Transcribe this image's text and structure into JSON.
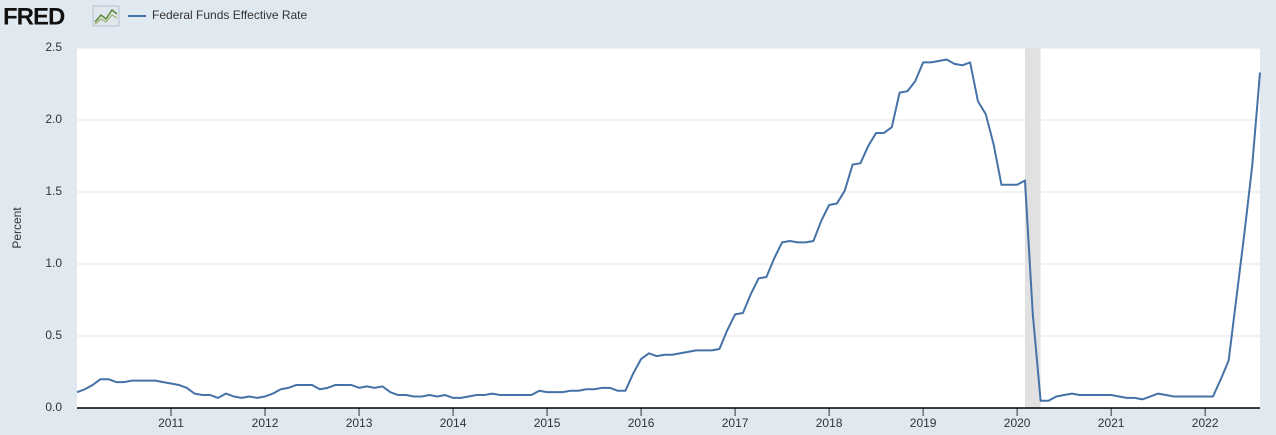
{
  "logo": "FRED",
  "chart_data": {
    "type": "line",
    "y_label": "Percent",
    "series": [
      {
        "name": "Federal Funds Effective Rate",
        "color": "#4572a7",
        "values": [
          0.11,
          0.13,
          0.16,
          0.2,
          0.2,
          0.18,
          0.18,
          0.19,
          0.19,
          0.19,
          0.19,
          0.18,
          0.17,
          0.16,
          0.14,
          0.1,
          0.09,
          0.09,
          0.07,
          0.1,
          0.08,
          0.07,
          0.08,
          0.07,
          0.08,
          0.1,
          0.13,
          0.14,
          0.16,
          0.16,
          0.16,
          0.13,
          0.14,
          0.16,
          0.16,
          0.16,
          0.14,
          0.15,
          0.14,
          0.15,
          0.11,
          0.09,
          0.09,
          0.08,
          0.08,
          0.09,
          0.08,
          0.09,
          0.07,
          0.07,
          0.08,
          0.09,
          0.09,
          0.1,
          0.09,
          0.09,
          0.09,
          0.09,
          0.09,
          0.12,
          0.11,
          0.11,
          0.11,
          0.12,
          0.12,
          0.13,
          0.13,
          0.14,
          0.14,
          0.12,
          0.12,
          0.24,
          0.34,
          0.38,
          0.36,
          0.37,
          0.37,
          0.38,
          0.39,
          0.4,
          0.4,
          0.4,
          0.41,
          0.54,
          0.65,
          0.66,
          0.79,
          0.9,
          0.91,
          1.04,
          1.15,
          1.16,
          1.15,
          1.15,
          1.16,
          1.3,
          1.41,
          1.42,
          1.51,
          1.69,
          1.7,
          1.82,
          1.91,
          1.91,
          1.95,
          2.19,
          2.2,
          2.27,
          2.4,
          2.4,
          2.41,
          2.42,
          2.39,
          2.38,
          2.4,
          2.13,
          2.04,
          1.83,
          1.55,
          1.55,
          1.55,
          1.58,
          0.65,
          0.05,
          0.05,
          0.08,
          0.09,
          0.1,
          0.09,
          0.09,
          0.09,
          0.09,
          0.09,
          0.08,
          0.07,
          0.07,
          0.06,
          0.08,
          0.1,
          0.09,
          0.08,
          0.08,
          0.08,
          0.08,
          0.08,
          0.08,
          0.2,
          0.33,
          0.77,
          1.21,
          1.68,
          2.33
        ]
      }
    ],
    "x_start": "2010-01",
    "xlim": [
      "2010-01",
      "2022-08"
    ],
    "xticks": [
      2011,
      2012,
      2013,
      2014,
      2015,
      2016,
      2017,
      2018,
      2019,
      2020,
      2021,
      2022
    ],
    "ylim": [
      0,
      2.5
    ],
    "yticks": [
      {
        "value": 0,
        "label": "0.0"
      },
      0.5,
      {
        "value": 1,
        "label": "1.0"
      },
      1.5,
      {
        "value": 2,
        "label": "2.0"
      },
      2.5
    ],
    "recessions": [
      [
        "2020-02",
        "2020-04"
      ]
    ],
    "grid": true
  }
}
